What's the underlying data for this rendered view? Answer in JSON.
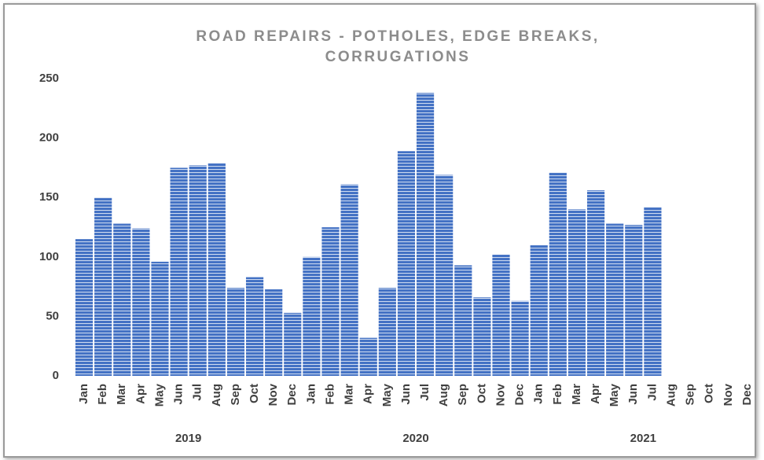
{
  "chart_data": {
    "type": "bar",
    "title": "ROAD REPAIRS - POTHOLES, EDGE BREAKS, CORRUGATIONS",
    "categories": [
      "Jan",
      "Feb",
      "Mar",
      "Apr",
      "May",
      "Jun",
      "Jul",
      "Aug",
      "Sep",
      "Oct",
      "Nov",
      "Dec",
      "Jan",
      "Feb",
      "Mar",
      "Apr",
      "May",
      "Jun",
      "Jul",
      "Aug",
      "Sep",
      "Oct",
      "Nov",
      "Dec",
      "Jan",
      "Feb",
      "Mar",
      "Apr",
      "May",
      "Jun",
      "Jul",
      "Aug",
      "Sep",
      "Oct",
      "Nov",
      "Dec"
    ],
    "groups": [
      {
        "label": "2019",
        "size": 12
      },
      {
        "label": "2020",
        "size": 12
      },
      {
        "label": "2021",
        "size": 12
      }
    ],
    "values": [
      115,
      150,
      128,
      124,
      96,
      175,
      177,
      179,
      74,
      83,
      73,
      53,
      100,
      125,
      161,
      32,
      74,
      189,
      238,
      169,
      93,
      66,
      102,
      63,
      110,
      171,
      140,
      156,
      128,
      127,
      142,
      null,
      null,
      null,
      null,
      null
    ],
    "color": "#4472c4",
    "ylim": [
      0,
      250
    ],
    "yticks": [
      0,
      50,
      100,
      150,
      200,
      250
    ],
    "grid": false
  }
}
